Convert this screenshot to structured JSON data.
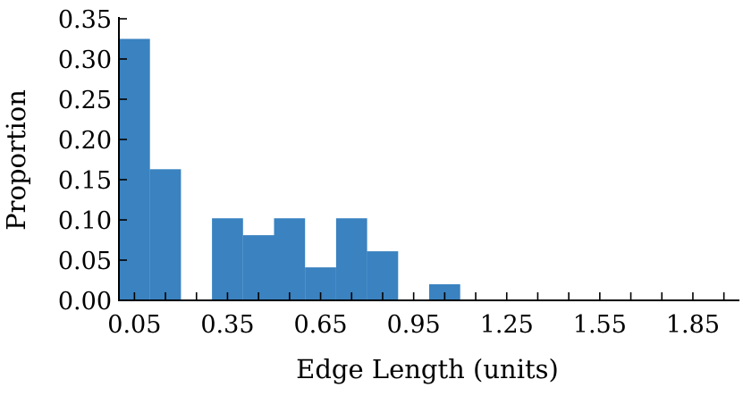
{
  "chart_data": {
    "type": "bar",
    "title": "",
    "xlabel": "Edge Length (units)",
    "ylabel": "Proportion",
    "bar_color": "#3a82c0",
    "bin_width": 0.1,
    "xlim": [
      0.0,
      2.0
    ],
    "ylim": [
      0.0,
      0.35
    ],
    "grid": false,
    "bins": [
      {
        "x0": 0.0,
        "x1": 0.1,
        "value": 0.325
      },
      {
        "x0": 0.1,
        "x1": 0.2,
        "value": 0.163
      },
      {
        "x0": 0.2,
        "x1": 0.3,
        "value": 0.0
      },
      {
        "x0": 0.3,
        "x1": 0.4,
        "value": 0.102
      },
      {
        "x0": 0.4,
        "x1": 0.5,
        "value": 0.081
      },
      {
        "x0": 0.5,
        "x1": 0.6,
        "value": 0.102
      },
      {
        "x0": 0.6,
        "x1": 0.7,
        "value": 0.041
      },
      {
        "x0": 0.7,
        "x1": 0.8,
        "value": 0.102
      },
      {
        "x0": 0.8,
        "x1": 0.9,
        "value": 0.061
      },
      {
        "x0": 0.9,
        "x1": 1.0,
        "value": 0.0
      },
      {
        "x0": 1.0,
        "x1": 1.1,
        "value": 0.02
      },
      {
        "x0": 1.1,
        "x1": 1.2,
        "value": 0.0
      },
      {
        "x0": 1.2,
        "x1": 1.3,
        "value": 0.0
      },
      {
        "x0": 1.3,
        "x1": 1.4,
        "value": 0.0
      },
      {
        "x0": 1.4,
        "x1": 1.5,
        "value": 0.0
      },
      {
        "x0": 1.5,
        "x1": 1.6,
        "value": 0.0
      },
      {
        "x0": 1.6,
        "x1": 1.7,
        "value": 0.0
      },
      {
        "x0": 1.7,
        "x1": 1.8,
        "value": 0.0
      },
      {
        "x0": 1.8,
        "x1": 1.9,
        "value": 0.0
      },
      {
        "x0": 1.9,
        "x1": 2.0,
        "value": 0.0
      }
    ],
    "x_ticks": [
      0.05,
      0.15,
      0.25,
      0.35,
      0.45,
      0.55,
      0.65,
      0.75,
      0.85,
      0.95,
      1.05,
      1.15,
      1.25,
      1.35,
      1.45,
      1.55,
      1.65,
      1.75,
      1.85,
      1.95
    ],
    "x_tick_labels": [
      {
        "value": 0.05,
        "label": "0.05"
      },
      {
        "value": 0.35,
        "label": "0.35"
      },
      {
        "value": 0.65,
        "label": "0.65"
      },
      {
        "value": 0.95,
        "label": "0.95"
      },
      {
        "value": 1.25,
        "label": "1.25"
      },
      {
        "value": 1.55,
        "label": "1.55"
      },
      {
        "value": 1.85,
        "label": "1.85"
      }
    ],
    "y_ticks": [
      {
        "value": 0.0,
        "label": "0.00"
      },
      {
        "value": 0.05,
        "label": "0.05"
      },
      {
        "value": 0.1,
        "label": "0.10"
      },
      {
        "value": 0.15,
        "label": "0.15"
      },
      {
        "value": 0.2,
        "label": "0.20"
      },
      {
        "value": 0.25,
        "label": "0.25"
      },
      {
        "value": 0.3,
        "label": "0.30"
      },
      {
        "value": 0.35,
        "label": "0.35"
      }
    ]
  }
}
